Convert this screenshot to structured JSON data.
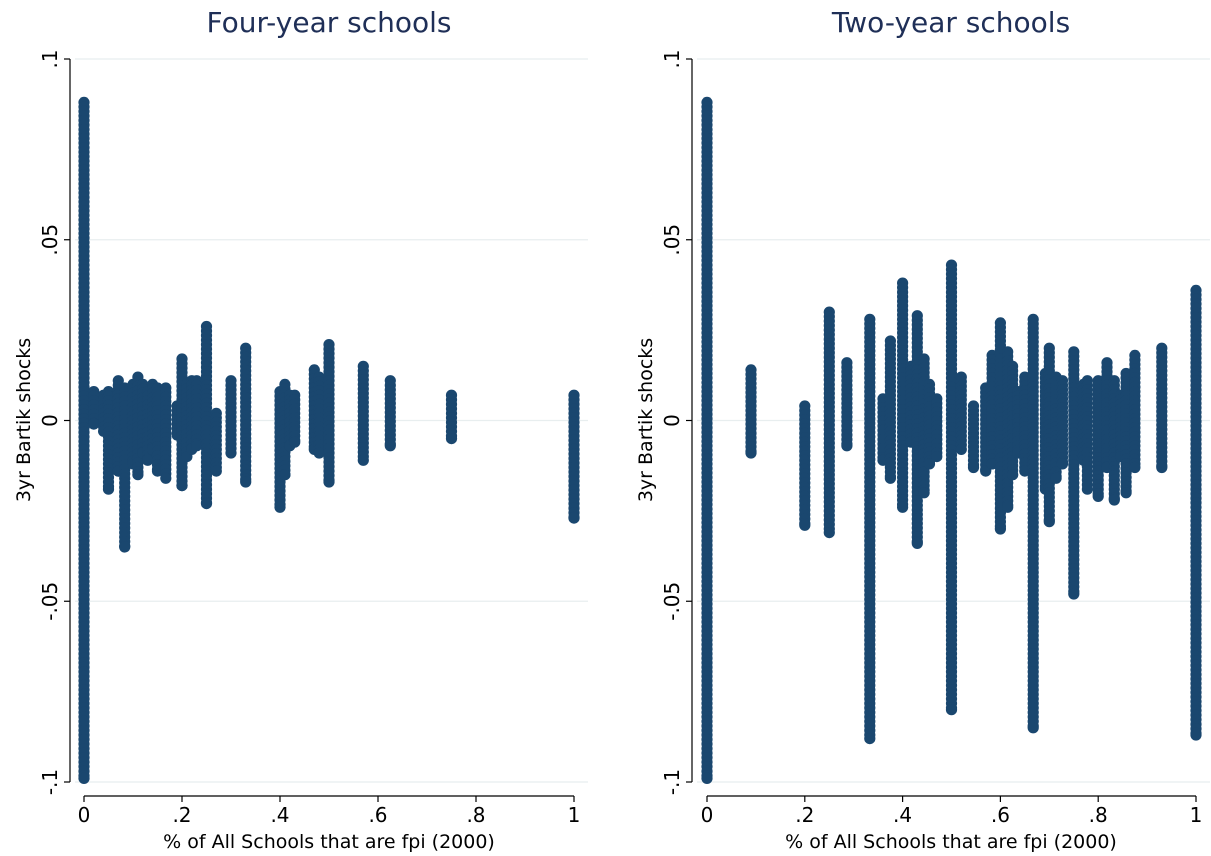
{
  "colors": {
    "marker": "#1a476f",
    "title": "#1f2f57",
    "grid": "#e8eeef",
    "axis": "#000000"
  },
  "chart_data": [
    {
      "type": "scatter",
      "title": "Four-year schools",
      "xlabel": "% of All Schools that are fpi (2000)",
      "ylabel": "3yr Bartik shocks",
      "xlim": [
        0,
        1
      ],
      "ylim": [
        -0.1,
        0.1
      ],
      "xticks": [
        {
          "value": 0,
          "label": "0"
        },
        {
          "value": 0.2,
          "label": ".2"
        },
        {
          "value": 0.4,
          "label": ".4"
        },
        {
          "value": 0.6,
          "label": ".6"
        },
        {
          "value": 0.8,
          "label": ".8"
        },
        {
          "value": 1,
          "label": "1"
        }
      ],
      "yticks": [
        {
          "value": -0.1,
          "label": "-.1"
        },
        {
          "value": -0.05,
          "label": "-.05"
        },
        {
          "value": 0,
          "label": "0"
        },
        {
          "value": 0.05,
          "label": ".05"
        },
        {
          "value": 0.1,
          "label": ".1"
        }
      ],
      "grid": true,
      "clusters": [
        {
          "x": 0,
          "ymin": -0.099,
          "ymax": 0.088
        },
        {
          "x": 0.02,
          "ymin": -0.001,
          "ymax": 0.008
        },
        {
          "x": 0.04,
          "ymin": -0.003,
          "ymax": 0.007
        },
        {
          "x": 0.05,
          "ymin": -0.019,
          "ymax": 0.008
        },
        {
          "x": 0.07,
          "ymin": -0.014,
          "ymax": 0.011
        },
        {
          "x": 0.083,
          "ymin": -0.035,
          "ymax": 0.009
        },
        {
          "x": 0.1,
          "ymin": -0.012,
          "ymax": 0.01
        },
        {
          "x": 0.11,
          "ymin": -0.015,
          "ymax": 0.012
        },
        {
          "x": 0.12,
          "ymin": -0.009,
          "ymax": 0.01
        },
        {
          "x": 0.13,
          "ymin": -0.011,
          "ymax": 0.008
        },
        {
          "x": 0.14,
          "ymin": -0.008,
          "ymax": 0.01
        },
        {
          "x": 0.15,
          "ymin": -0.014,
          "ymax": 0.009
        },
        {
          "x": 0.167,
          "ymin": -0.016,
          "ymax": 0.009
        },
        {
          "x": 0.19,
          "ymin": -0.004,
          "ymax": 0.004
        },
        {
          "x": 0.2,
          "ymin": -0.018,
          "ymax": 0.017
        },
        {
          "x": 0.21,
          "ymin": -0.01,
          "ymax": 0.01
        },
        {
          "x": 0.22,
          "ymin": -0.008,
          "ymax": 0.011
        },
        {
          "x": 0.23,
          "ymin": -0.007,
          "ymax": 0.011
        },
        {
          "x": 0.25,
          "ymin": -0.023,
          "ymax": 0.026
        },
        {
          "x": 0.27,
          "ymin": -0.014,
          "ymax": 0.002
        },
        {
          "x": 0.3,
          "ymin": -0.009,
          "ymax": 0.011
        },
        {
          "x": 0.33,
          "ymin": -0.017,
          "ymax": 0.02
        },
        {
          "x": 0.4,
          "ymin": -0.024,
          "ymax": 0.008
        },
        {
          "x": 0.41,
          "ymin": -0.015,
          "ymax": 0.01
        },
        {
          "x": 0.42,
          "ymin": -0.007,
          "ymax": 0.007
        },
        {
          "x": 0.43,
          "ymin": -0.006,
          "ymax": 0.007
        },
        {
          "x": 0.47,
          "ymin": -0.008,
          "ymax": 0.014
        },
        {
          "x": 0.48,
          "ymin": -0.009,
          "ymax": 0.012
        },
        {
          "x": 0.5,
          "ymin": -0.017,
          "ymax": 0.021
        },
        {
          "x": 0.57,
          "ymin": -0.011,
          "ymax": 0.015
        },
        {
          "x": 0.625,
          "ymin": -0.007,
          "ymax": 0.011
        },
        {
          "x": 0.75,
          "ymin": -0.005,
          "ymax": 0.007
        },
        {
          "x": 1,
          "ymin": -0.027,
          "ymax": 0.007
        }
      ]
    },
    {
      "type": "scatter",
      "title": "Two-year schools",
      "xlabel": "% of All Schools that are fpi (2000)",
      "ylabel": "3yr Bartik shocks",
      "xlim": [
        0,
        1
      ],
      "ylim": [
        -0.1,
        0.1
      ],
      "xticks": [
        {
          "value": 0,
          "label": "0"
        },
        {
          "value": 0.2,
          "label": ".2"
        },
        {
          "value": 0.4,
          "label": ".4"
        },
        {
          "value": 0.6,
          "label": ".6"
        },
        {
          "value": 0.8,
          "label": ".8"
        },
        {
          "value": 1,
          "label": "1"
        }
      ],
      "yticks": [
        {
          "value": -0.1,
          "label": "-.1"
        },
        {
          "value": -0.05,
          "label": "-.05"
        },
        {
          "value": 0,
          "label": "0"
        },
        {
          "value": 0.05,
          "label": ".05"
        },
        {
          "value": 0.1,
          "label": ".1"
        }
      ],
      "grid": true,
      "clusters": [
        {
          "x": 0,
          "ymin": -0.099,
          "ymax": 0.088
        },
        {
          "x": 0.09,
          "ymin": -0.009,
          "ymax": 0.014
        },
        {
          "x": 0.2,
          "ymin": -0.029,
          "ymax": 0.004
        },
        {
          "x": 0.25,
          "ymin": -0.031,
          "ymax": 0.03
        },
        {
          "x": 0.286,
          "ymin": -0.007,
          "ymax": 0.016
        },
        {
          "x": 0.333,
          "ymin": -0.088,
          "ymax": 0.028
        },
        {
          "x": 0.36,
          "ymin": -0.011,
          "ymax": 0.006
        },
        {
          "x": 0.375,
          "ymin": -0.016,
          "ymax": 0.022
        },
        {
          "x": 0.4,
          "ymin": -0.024,
          "ymax": 0.038
        },
        {
          "x": 0.417,
          "ymin": -0.006,
          "ymax": 0.015
        },
        {
          "x": 0.43,
          "ymin": -0.034,
          "ymax": 0.029
        },
        {
          "x": 0.444,
          "ymin": -0.02,
          "ymax": 0.017
        },
        {
          "x": 0.455,
          "ymin": -0.012,
          "ymax": 0.01
        },
        {
          "x": 0.47,
          "ymin": -0.01,
          "ymax": 0.006
        },
        {
          "x": 0.5,
          "ymin": -0.08,
          "ymax": 0.043
        },
        {
          "x": 0.52,
          "ymin": -0.008,
          "ymax": 0.012
        },
        {
          "x": 0.545,
          "ymin": -0.013,
          "ymax": 0.004
        },
        {
          "x": 0.57,
          "ymin": -0.014,
          "ymax": 0.009
        },
        {
          "x": 0.583,
          "ymin": -0.012,
          "ymax": 0.018
        },
        {
          "x": 0.6,
          "ymin": -0.03,
          "ymax": 0.027
        },
        {
          "x": 0.615,
          "ymin": -0.024,
          "ymax": 0.019
        },
        {
          "x": 0.625,
          "ymin": -0.015,
          "ymax": 0.015
        },
        {
          "x": 0.636,
          "ymin": -0.009,
          "ymax": 0.008
        },
        {
          "x": 0.65,
          "ymin": -0.014,
          "ymax": 0.012
        },
        {
          "x": 0.667,
          "ymin": -0.085,
          "ymax": 0.028
        },
        {
          "x": 0.692,
          "ymin": -0.019,
          "ymax": 0.013
        },
        {
          "x": 0.7,
          "ymin": -0.028,
          "ymax": 0.02
        },
        {
          "x": 0.714,
          "ymin": -0.016,
          "ymax": 0.012
        },
        {
          "x": 0.727,
          "ymin": -0.012,
          "ymax": 0.011
        },
        {
          "x": 0.75,
          "ymin": -0.048,
          "ymax": 0.019
        },
        {
          "x": 0.77,
          "ymin": -0.011,
          "ymax": 0.01
        },
        {
          "x": 0.778,
          "ymin": -0.019,
          "ymax": 0.011
        },
        {
          "x": 0.8,
          "ymin": -0.021,
          "ymax": 0.011
        },
        {
          "x": 0.818,
          "ymin": -0.013,
          "ymax": 0.016
        },
        {
          "x": 0.833,
          "ymin": -0.022,
          "ymax": 0.011
        },
        {
          "x": 0.846,
          "ymin": -0.01,
          "ymax": 0.007
        },
        {
          "x": 0.857,
          "ymin": -0.02,
          "ymax": 0.013
        },
        {
          "x": 0.875,
          "ymin": -0.013,
          "ymax": 0.018
        },
        {
          "x": 0.93,
          "ymin": -0.013,
          "ymax": 0.02
        },
        {
          "x": 1,
          "ymin": -0.087,
          "ymax": 0.036
        }
      ]
    }
  ]
}
